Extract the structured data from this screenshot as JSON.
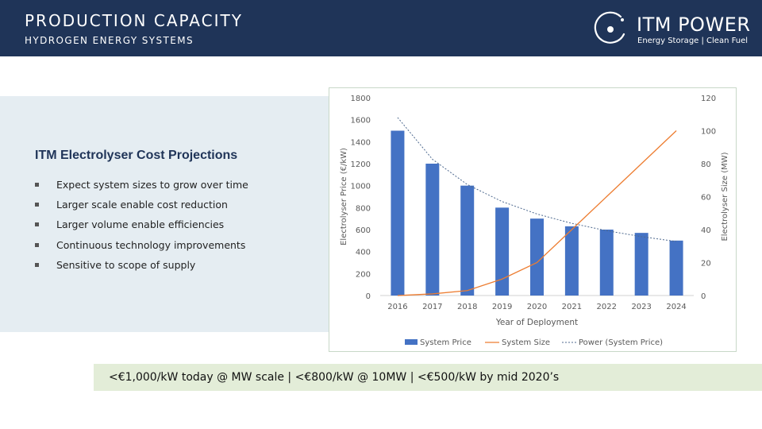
{
  "header": {
    "title": "PRODUCTION CAPACITY",
    "subtitle": "HYDROGEN ENERGY SYSTEMS"
  },
  "logo": {
    "name": "ITM POWER",
    "tagline": "Energy Storage | Clean Fuel"
  },
  "panel": {
    "title": "ITM Electrolyser Cost Projections",
    "bullets": [
      "Expect system sizes to grow over time",
      "Larger scale enable cost reduction",
      "Larger volume enable efficiencies",
      "Continuous technology improvements",
      "Sensitive to scope of supply"
    ]
  },
  "banner": {
    "text": "<€1,000/kW today @ MW scale | <€800/kW @ 10MW | <€500/kW by mid 2020’s"
  },
  "colors": {
    "header_bg": "#1f3458",
    "bar": "#4472c4",
    "line": "#ed7d31",
    "trend": "#4f6a8f"
  },
  "chart_data": {
    "type": "bar",
    "title": "",
    "xlabel": "Year of Deployment",
    "ylabel": "Electrolyser Price (€/kW)",
    "y2label": "Electrolyser Size (MW)",
    "categories": [
      "2016",
      "2017",
      "2018",
      "2019",
      "2020",
      "2021",
      "2022",
      "2023",
      "2024"
    ],
    "ylim": [
      0,
      1800
    ],
    "y2lim": [
      0,
      120
    ],
    "yticks": [
      "0",
      "200",
      "400",
      "600",
      "800",
      "1000",
      "1200",
      "1400",
      "1600",
      "1800"
    ],
    "y2ticks": [
      "0",
      "20",
      "40",
      "60",
      "80",
      "100",
      "120"
    ],
    "series": [
      {
        "name": "System Price",
        "kind": "bar",
        "axis": "left",
        "values": [
          1500,
          1200,
          1000,
          800,
          700,
          630,
          600,
          570,
          500
        ]
      },
      {
        "name": "System Size",
        "kind": "line",
        "axis": "right",
        "values": [
          0,
          1,
          3,
          10,
          20,
          40,
          60,
          80,
          100
        ]
      },
      {
        "name": "Power (System Price)",
        "kind": "trendline",
        "axis": "left",
        "values": [
          1620,
          1240,
          1010,
          855,
          742,
          657,
          590,
          536,
          492
        ]
      }
    ],
    "legend_position": "bottom",
    "grid": false
  }
}
